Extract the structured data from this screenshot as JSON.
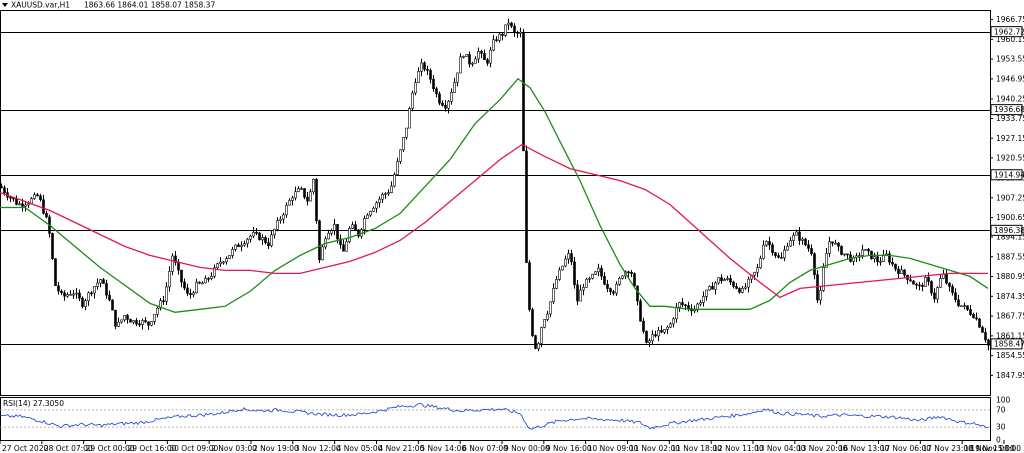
{
  "header": {
    "symbol": "XAUUSD.var,H1",
    "ohlc": "1863.66 1864.01 1858.07 1858.37",
    "rsi_label": "RSI(14) 27.3050"
  },
  "chart_data": {
    "type": "candlestick",
    "symbol": "XAUUSD.var",
    "timeframe": "H1",
    "ylim": [
      1841.4,
      1969.95
    ],
    "y_ticks": [
      1966.75,
      1960.15,
      1953.55,
      1946.95,
      1940.25,
      1933.75,
      1927.15,
      1920.55,
      1913.85,
      1907.25,
      1900.65,
      1894.15,
      1887.55,
      1880.95,
      1874.35,
      1867.75,
      1861.15,
      1854.55,
      1847.95
    ],
    "x_labels": [
      "27 Oct 2020",
      "28 Oct 07:00",
      "29 Oct 00:00",
      "29 Oct 16:00",
      "30 Oct 09:00",
      "2 Nov 03:00",
      "2 Nov 19:00",
      "3 Nov 12:00",
      "4 Nov 05:00",
      "4 Nov 21:00",
      "5 Nov 14:00",
      "6 Nov 07:00",
      "9 Nov 00:00",
      "9 Nov 16:00",
      "10 Nov 09:00",
      "11 Nov 02:00",
      "11 Nov 18:00",
      "12 Nov 11:00",
      "13 Nov 04:00",
      "13 Nov 20:00",
      "16 Nov 13:00",
      "17 Nov 06:00",
      "17 Nov 23:00",
      "18 Nov 15:00",
      "19 Nov 08:00"
    ],
    "horizontal_levels": [
      1962.72,
      1936.68,
      1914.94,
      1896.38,
      1858.47
    ],
    "current_price": 1858.37,
    "price_path": [
      [
        0,
        1911
      ],
      [
        8,
        1908
      ],
      [
        18,
        1905
      ],
      [
        28,
        1906
      ],
      [
        38,
        1908
      ],
      [
        48,
        1898
      ],
      [
        55,
        1878
      ],
      [
        62,
        1874
      ],
      [
        72,
        1876
      ],
      [
        82,
        1872
      ],
      [
        92,
        1877
      ],
      [
        100,
        1880
      ],
      [
        108,
        1874
      ],
      [
        116,
        1864
      ],
      [
        124,
        1868
      ],
      [
        132,
        1866
      ],
      [
        140,
        1866
      ],
      [
        148,
        1865
      ],
      [
        156,
        1870
      ],
      [
        164,
        1874
      ],
      [
        172,
        1888
      ],
      [
        180,
        1880
      ],
      [
        188,
        1874
      ],
      [
        196,
        1878
      ],
      [
        204,
        1879
      ],
      [
        212,
        1882
      ],
      [
        220,
        1886
      ],
      [
        228,
        1888
      ],
      [
        236,
        1891
      ],
      [
        244,
        1893
      ],
      [
        252,
        1895
      ],
      [
        260,
        1894
      ],
      [
        268,
        1892
      ],
      [
        276,
        1898
      ],
      [
        284,
        1903
      ],
      [
        292,
        1908
      ],
      [
        300,
        1910
      ],
      [
        308,
        1906
      ],
      [
        314,
        1915
      ],
      [
        318,
        1885
      ],
      [
        326,
        1896
      ],
      [
        334,
        1898
      ],
      [
        342,
        1888
      ],
      [
        350,
        1898
      ],
      [
        358,
        1895
      ],
      [
        366,
        1902
      ],
      [
        374,
        1905
      ],
      [
        382,
        1908
      ],
      [
        390,
        1910
      ],
      [
        398,
        1920
      ],
      [
        406,
        1931
      ],
      [
        414,
        1946
      ],
      [
        422,
        1952
      ],
      [
        430,
        1947
      ],
      [
        438,
        1940
      ],
      [
        446,
        1938
      ],
      [
        454,
        1946
      ],
      [
        462,
        1956
      ],
      [
        470,
        1952
      ],
      [
        478,
        1956
      ],
      [
        486,
        1952
      ],
      [
        494,
        1960
      ],
      [
        502,
        1962
      ],
      [
        508,
        1966
      ],
      [
        514,
        1962
      ],
      [
        520,
        1962
      ],
      [
        522,
        1935
      ],
      [
        526,
        1885
      ],
      [
        530,
        1865
      ],
      [
        536,
        1856
      ],
      [
        542,
        1866
      ],
      [
        548,
        1870
      ],
      [
        556,
        1880
      ],
      [
        564,
        1886
      ],
      [
        570,
        1889
      ],
      [
        576,
        1872
      ],
      [
        582,
        1878
      ],
      [
        590,
        1880
      ],
      [
        598,
        1883
      ],
      [
        606,
        1878
      ],
      [
        614,
        1876
      ],
      [
        622,
        1882
      ],
      [
        630,
        1884
      ],
      [
        638,
        1870
      ],
      [
        646,
        1858
      ],
      [
        654,
        1862
      ],
      [
        662,
        1862
      ],
      [
        670,
        1865
      ],
      [
        678,
        1872
      ],
      [
        686,
        1871
      ],
      [
        694,
        1870
      ],
      [
        702,
        1874
      ],
      [
        710,
        1877
      ],
      [
        718,
        1880
      ],
      [
        726,
        1880
      ],
      [
        734,
        1878
      ],
      [
        742,
        1876
      ],
      [
        750,
        1880
      ],
      [
        758,
        1884
      ],
      [
        764,
        1894
      ],
      [
        772,
        1890
      ],
      [
        780,
        1886
      ],
      [
        788,
        1893
      ],
      [
        796,
        1895
      ],
      [
        804,
        1892
      ],
      [
        812,
        1889
      ],
      [
        818,
        1870
      ],
      [
        824,
        1886
      ],
      [
        830,
        1894
      ],
      [
        838,
        1890
      ],
      [
        846,
        1888
      ],
      [
        854,
        1886
      ],
      [
        862,
        1890
      ],
      [
        870,
        1888
      ],
      [
        878,
        1886
      ],
      [
        886,
        1888
      ],
      [
        894,
        1884
      ],
      [
        902,
        1882
      ],
      [
        910,
        1880
      ],
      [
        918,
        1877
      ],
      [
        926,
        1880
      ],
      [
        934,
        1874
      ],
      [
        942,
        1882
      ],
      [
        950,
        1876
      ],
      [
        958,
        1872
      ],
      [
        966,
        1870
      ],
      [
        974,
        1868
      ],
      [
        982,
        1863
      ],
      [
        988,
        1858
      ]
    ],
    "series": [
      {
        "name": "",
        "color": "#1a8c1a",
        "values": [
          [
            0,
            1904
          ],
          [
            25,
            1904
          ],
          [
            50,
            1898
          ],
          [
            75,
            1891
          ],
          [
            100,
            1884
          ],
          [
            125,
            1878
          ],
          [
            150,
            1872
          ],
          [
            175,
            1869
          ],
          [
            200,
            1870
          ],
          [
            225,
            1871
          ],
          [
            250,
            1876
          ],
          [
            275,
            1883
          ],
          [
            300,
            1888
          ],
          [
            325,
            1892
          ],
          [
            350,
            1894
          ],
          [
            375,
            1897
          ],
          [
            400,
            1902
          ],
          [
            425,
            1911
          ],
          [
            450,
            1920
          ],
          [
            475,
            1932
          ],
          [
            500,
            1940
          ],
          [
            518,
            1947
          ],
          [
            530,
            1944
          ],
          [
            545,
            1936
          ],
          [
            560,
            1926
          ],
          [
            580,
            1913
          ],
          [
            600,
            1898
          ],
          [
            620,
            1885
          ],
          [
            635,
            1877
          ],
          [
            650,
            1871
          ],
          [
            665,
            1871
          ],
          [
            690,
            1870
          ],
          [
            720,
            1870
          ],
          [
            750,
            1870
          ],
          [
            770,
            1873
          ],
          [
            790,
            1879
          ],
          [
            810,
            1883
          ],
          [
            830,
            1885
          ],
          [
            850,
            1887
          ],
          [
            870,
            1888
          ],
          [
            890,
            1888
          ],
          [
            910,
            1887
          ],
          [
            930,
            1885
          ],
          [
            950,
            1883
          ],
          [
            970,
            1881
          ],
          [
            988,
            1877
          ]
        ]
      },
      {
        "name": "",
        "color": "#e0184a",
        "values": [
          [
            0,
            1909
          ],
          [
            25,
            1906
          ],
          [
            50,
            1903
          ],
          [
            75,
            1899
          ],
          [
            100,
            1895
          ],
          [
            125,
            1891
          ],
          [
            150,
            1888
          ],
          [
            175,
            1886
          ],
          [
            200,
            1884
          ],
          [
            225,
            1883
          ],
          [
            250,
            1883
          ],
          [
            275,
            1882
          ],
          [
            300,
            1882
          ],
          [
            325,
            1884
          ],
          [
            350,
            1886
          ],
          [
            375,
            1889
          ],
          [
            400,
            1893
          ],
          [
            425,
            1899
          ],
          [
            450,
            1906
          ],
          [
            475,
            1913
          ],
          [
            500,
            1920
          ],
          [
            522,
            1925
          ],
          [
            545,
            1921
          ],
          [
            570,
            1917
          ],
          [
            595,
            1915
          ],
          [
            620,
            1913
          ],
          [
            645,
            1910
          ],
          [
            670,
            1905
          ],
          [
            700,
            1896
          ],
          [
            730,
            1887
          ],
          [
            760,
            1879
          ],
          [
            780,
            1874
          ],
          [
            800,
            1877
          ],
          [
            830,
            1878
          ],
          [
            860,
            1879
          ],
          [
            890,
            1880
          ],
          [
            920,
            1881
          ],
          [
            950,
            1882
          ],
          [
            988,
            1882
          ]
        ]
      },
      {
        "name": "",
        "color": "#1a3ccc",
        "values": [
          [
            0,
            55
          ],
          [
            20,
            55
          ],
          [
            40,
            45
          ],
          [
            60,
            32
          ],
          [
            80,
            36
          ],
          [
            100,
            34
          ],
          [
            120,
            38
          ],
          [
            140,
            40
          ],
          [
            160,
            48
          ],
          [
            180,
            55
          ],
          [
            200,
            58
          ],
          [
            220,
            62
          ],
          [
            240,
            72
          ],
          [
            260,
            68
          ],
          [
            280,
            70
          ],
          [
            300,
            65
          ],
          [
            320,
            60
          ],
          [
            340,
            58
          ],
          [
            360,
            60
          ],
          [
            380,
            68
          ],
          [
            400,
            78
          ],
          [
            420,
            82
          ],
          [
            440,
            75
          ],
          [
            460,
            68
          ],
          [
            480,
            70
          ],
          [
            500,
            72
          ],
          [
            520,
            62
          ],
          [
            530,
            25
          ],
          [
            545,
            35
          ],
          [
            560,
            45
          ],
          [
            580,
            50
          ],
          [
            600,
            48
          ],
          [
            620,
            46
          ],
          [
            640,
            40
          ],
          [
            650,
            28
          ],
          [
            670,
            38
          ],
          [
            690,
            45
          ],
          [
            710,
            50
          ],
          [
            730,
            56
          ],
          [
            750,
            62
          ],
          [
            765,
            72
          ],
          [
            780,
            62
          ],
          [
            800,
            60
          ],
          [
            820,
            55
          ],
          [
            840,
            58
          ],
          [
            860,
            56
          ],
          [
            880,
            55
          ],
          [
            900,
            52
          ],
          [
            920,
            45
          ],
          [
            940,
            55
          ],
          [
            960,
            42
          ],
          [
            975,
            38
          ],
          [
            988,
            27
          ]
        ]
      }
    ],
    "rsi": {
      "label": "RSI(14) 27.3050",
      "ylim": [
        0,
        100
      ],
      "ticks": [
        100,
        70,
        30,
        0
      ],
      "levels": [
        70,
        30
      ]
    }
  }
}
